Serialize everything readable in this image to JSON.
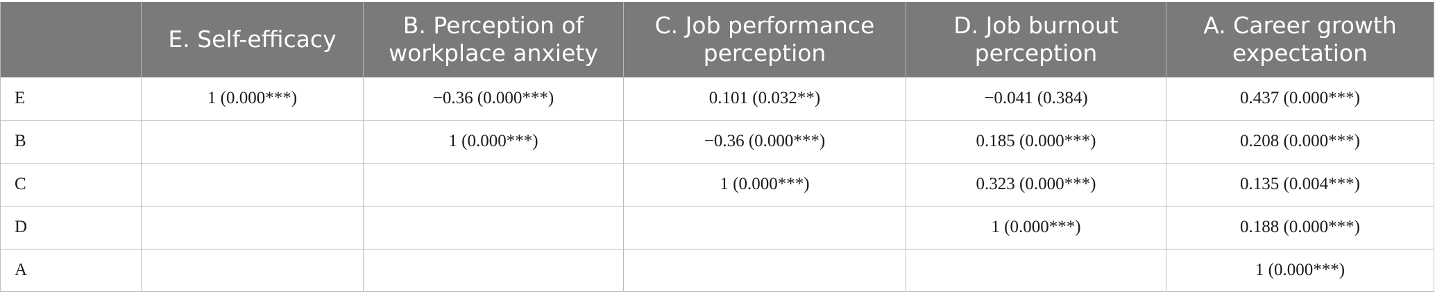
{
  "table": {
    "headers": [
      "",
      "E. Self-efficacy",
      "B. Perception of workplace anxiety",
      "C. Job performance perception",
      "D. Job burnout perception",
      "A. Career growth expectation"
    ],
    "rows": [
      [
        "E",
        "1 (0.000***)",
        "−0.36 (0.000***)",
        "0.101 (0.032**)",
        "−0.041 (0.384)",
        "0.437 (0.000***)"
      ],
      [
        "B",
        "",
        "1 (0.000***)",
        "−0.36 (0.000***)",
        "0.185 (0.000***)",
        "0.208 (0.000***)"
      ],
      [
        "C",
        "",
        "",
        "1 (0.000***)",
        "0.323 (0.000***)",
        "0.135 (0.004***)"
      ],
      [
        "D",
        "",
        "",
        "",
        "1 (0.000***)",
        "0.188 (0.000***)"
      ],
      [
        "A",
        "",
        "",
        "",
        "",
        "1 (0.000***)"
      ]
    ]
  },
  "colors": {
    "header_bg": "#7a7a79",
    "header_text": "#ffffff",
    "grid": "#bdbdbd"
  }
}
